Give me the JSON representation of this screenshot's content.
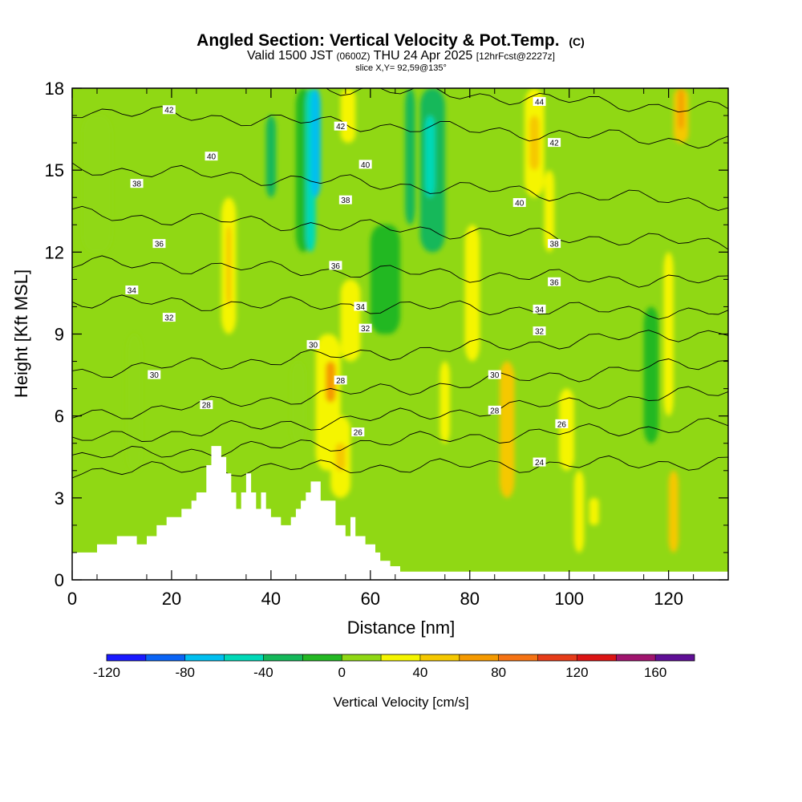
{
  "chart_data": {
    "type": "heatmap",
    "title": {
      "main": "Angled Section: Vertical Velocity & Pot.Temp.",
      "main_unit": "(C)",
      "valid_prefix": "Valid 1500 JST",
      "valid_utc": "(0600Z)",
      "valid_date": "THU 24 Apr 2025",
      "forecast": "[12hrFcst@2227z]",
      "slice": "slice X,Y= 92,59@135°"
    },
    "xlabel": "Distance [nm]",
    "ylabel": "Height [Kft MSL]",
    "xlim": [
      0,
      132
    ],
    "ylim": [
      0,
      18
    ],
    "x_ticks": [
      0,
      20,
      40,
      60,
      80,
      100,
      120
    ],
    "y_ticks": [
      0,
      3,
      6,
      9,
      12,
      15,
      18
    ],
    "colorbar": {
      "label": "Vertical Velocity [cm/s]",
      "min": -120,
      "max": 180,
      "step": 20,
      "tick_values": [
        -120,
        -80,
        -40,
        0,
        40,
        80,
        120,
        160
      ],
      "colors": [
        "#1a1aff",
        "#0a64f5",
        "#00bff0",
        "#00d9b8",
        "#14b85a",
        "#24b824",
        "#90d814",
        "#f5f500",
        "#f5c800",
        "#f59a00",
        "#f57314",
        "#e63c19",
        "#dc1414",
        "#a0146e",
        "#5f0f96"
      ]
    },
    "terrain_profile": {
      "distance_nm": [
        0,
        5,
        5,
        9,
        9,
        13,
        13,
        15,
        15,
        17,
        17,
        19,
        19,
        22,
        22,
        24,
        24,
        25,
        25,
        27,
        27,
        28,
        28,
        30,
        30,
        31,
        31,
        32,
        32,
        33,
        33,
        34,
        34,
        35,
        35,
        36,
        36,
        37,
        37,
        38,
        38,
        39,
        39,
        40,
        40,
        42,
        42,
        44,
        44,
        45,
        45,
        46,
        46,
        47,
        47,
        48,
        48,
        50,
        50,
        53,
        53,
        55,
        55,
        56,
        56,
        57,
        57,
        59,
        59,
        61,
        61,
        62,
        62,
        64,
        64,
        66,
        66,
        67,
        67,
        69,
        69,
        71,
        71,
        132
      ],
      "height_kft": [
        1,
        1,
        1.3,
        1.3,
        1.6,
        1.6,
        1.3,
        1.3,
        1.6,
        1.6,
        2,
        2,
        2.3,
        2.3,
        2.6,
        2.6,
        2.9,
        2.9,
        3.2,
        3.2,
        4.2,
        4.2,
        4.9,
        4.9,
        4.5,
        4.5,
        3.9,
        3.9,
        3.2,
        3.2,
        2.6,
        2.6,
        3.2,
        3.2,
        3.9,
        3.9,
        3.2,
        3.2,
        2.6,
        2.6,
        3.2,
        3.2,
        2.6,
        2.6,
        2.3,
        2.3,
        2,
        2,
        2.3,
        2.3,
        2.6,
        2.6,
        2.9,
        2.9,
        3.2,
        3.2,
        3.6,
        3.6,
        2.9,
        2.9,
        2,
        2,
        1.6,
        1.6,
        2.3,
        2.3,
        1.6,
        1.6,
        1.3,
        1.3,
        1,
        1,
        0.7,
        0.7,
        0.5,
        0.5,
        0.3,
        0.3,
        0.3,
        0.3,
        0.3,
        0.3,
        0.3,
        0.3
      ]
    },
    "vertical_velocity_columns": [
      {
        "x": [
          11,
          14
        ],
        "y": [
          4,
          9
        ],
        "value": 5
      },
      {
        "x": [
          30,
          33
        ],
        "y": [
          9,
          14
        ],
        "value": 35
      },
      {
        "x": [
          31,
          32
        ],
        "y": [
          10,
          13
        ],
        "value": 45
      },
      {
        "x": [
          44,
          47
        ],
        "y": [
          5,
          8
        ],
        "value": 5
      },
      {
        "x": [
          45,
          48
        ],
        "y": [
          12,
          18
        ],
        "value": -20
      },
      {
        "x": [
          47,
          49
        ],
        "y": [
          12,
          18
        ],
        "value": -45
      },
      {
        "x": [
          48,
          50
        ],
        "y": [
          14,
          18
        ],
        "value": -65
      },
      {
        "x": [
          39,
          41
        ],
        "y": [
          14,
          17
        ],
        "value": -30
      },
      {
        "x": [
          49,
          54
        ],
        "y": [
          4,
          9
        ],
        "value": 30
      },
      {
        "x": [
          51,
          53
        ],
        "y": [
          6.5,
          8
        ],
        "value": 65
      },
      {
        "x": [
          52,
          56
        ],
        "y": [
          3,
          6
        ],
        "value": 35
      },
      {
        "x": [
          53,
          55
        ],
        "y": [
          4,
          5
        ],
        "value": 55
      },
      {
        "x": [
          54,
          58
        ],
        "y": [
          8,
          11
        ],
        "value": 30
      },
      {
        "x": [
          54,
          57
        ],
        "y": [
          16,
          18
        ],
        "value": 25
      },
      {
        "x": [
          67,
          69
        ],
        "y": [
          13,
          18
        ],
        "value": -30
      },
      {
        "x": [
          70,
          75
        ],
        "y": [
          12,
          18
        ],
        "value": -35
      },
      {
        "x": [
          71,
          73
        ],
        "y": [
          14,
          17
        ],
        "value": -55
      },
      {
        "x": [
          74,
          76
        ],
        "y": [
          5,
          8
        ],
        "value": 30
      },
      {
        "x": [
          79,
          82
        ],
        "y": [
          8,
          13
        ],
        "value": 35
      },
      {
        "x": [
          86,
          89
        ],
        "y": [
          3,
          8
        ],
        "value": 40
      },
      {
        "x": [
          87,
          88
        ],
        "y": [
          3.5,
          5
        ],
        "value": 55
      },
      {
        "x": [
          91,
          95
        ],
        "y": [
          14,
          18
        ],
        "value": 35
      },
      {
        "x": [
          92,
          94
        ],
        "y": [
          15,
          17
        ],
        "value": 55
      },
      {
        "x": [
          95,
          97
        ],
        "y": [
          12,
          15
        ],
        "value": 30
      },
      {
        "x": [
          98,
          101
        ],
        "y": [
          4,
          7
        ],
        "value": 35
      },
      {
        "x": [
          101,
          103
        ],
        "y": [
          1,
          4
        ],
        "value": 35
      },
      {
        "x": [
          104,
          106
        ],
        "y": [
          2,
          3
        ],
        "value": 30
      },
      {
        "x": [
          119,
          121
        ],
        "y": [
          6,
          12
        ],
        "value": 30
      },
      {
        "x": [
          120,
          122
        ],
        "y": [
          1,
          4
        ],
        "value": 40
      },
      {
        "x": [
          121,
          124
        ],
        "y": [
          16,
          18
        ],
        "value": 40
      },
      {
        "x": [
          122,
          123
        ],
        "y": [
          16.5,
          18
        ],
        "value": 60
      },
      {
        "x": [
          115,
          118
        ],
        "y": [
          5,
          10
        ],
        "value": -10
      },
      {
        "x": [
          60,
          66
        ],
        "y": [
          9,
          13
        ],
        "value": -10
      },
      {
        "x": [
          2,
          8
        ],
        "y": [
          12,
          17
        ],
        "value": 15
      }
    ],
    "isentropes_C": [
      {
        "theta": 24,
        "y_left": 4.0,
        "y_right": 4.3,
        "label_x": 94
      },
      {
        "theta": 26,
        "y_left": 4.5,
        "y_right": 5.7,
        "label_x": 100
      },
      {
        "theta": 28,
        "y_left": 5.1,
        "y_right": 6.9,
        "label_x": 85
      },
      {
        "theta": 30,
        "y_left": 6.0,
        "y_right": 8.0,
        "label_x": 85
      },
      {
        "theta": 32,
        "y_left": 7.6,
        "y_right": 9.1,
        "label_x": 94
      },
      {
        "theta": 34,
        "y_left": 10.2,
        "y_right": 9.8,
        "label_x": 94
      },
      {
        "theta": 36,
        "y_left": 11.6,
        "y_right": 10.9,
        "label_x": 97
      },
      {
        "theta": 38,
        "y_left": 13.4,
        "y_right": 12.3,
        "label_x": 97
      },
      {
        "theta": 40,
        "y_left": 15.1,
        "y_right": 13.8,
        "label_x": 90
      },
      {
        "theta": 42,
        "y_left": 17.2,
        "y_right": 16.0,
        "label_x": 97
      },
      {
        "theta": 44,
        "y_left": 18.6,
        "y_right": 17.2,
        "label_x": 94
      }
    ],
    "contour_labels": [
      {
        "text": "42",
        "x": 19.5,
        "y": 17.2
      },
      {
        "text": "42",
        "x": 54.0,
        "y": 16.6
      },
      {
        "text": "44",
        "x": 94.0,
        "y": 17.5
      },
      {
        "text": "42",
        "x": 97.0,
        "y": 16.0
      },
      {
        "text": "40",
        "x": 28.0,
        "y": 15.5
      },
      {
        "text": "40",
        "x": 59.0,
        "y": 15.2
      },
      {
        "text": "40",
        "x": 90.0,
        "y": 13.8
      },
      {
        "text": "38",
        "x": 13.0,
        "y": 14.5
      },
      {
        "text": "38",
        "x": 55.0,
        "y": 13.9
      },
      {
        "text": "38",
        "x": 97.0,
        "y": 12.3
      },
      {
        "text": "36",
        "x": 17.5,
        "y": 12.3
      },
      {
        "text": "36",
        "x": 53.0,
        "y": 11.5
      },
      {
        "text": "36",
        "x": 97.0,
        "y": 10.9
      },
      {
        "text": "34",
        "x": 12.0,
        "y": 10.6
      },
      {
        "text": "34",
        "x": 58.0,
        "y": 10.0
      },
      {
        "text": "34",
        "x": 94.0,
        "y": 9.9
      },
      {
        "text": "32",
        "x": 19.5,
        "y": 9.6
      },
      {
        "text": "32",
        "x": 59.0,
        "y": 9.2
      },
      {
        "text": "32",
        "x": 94.0,
        "y": 9.1
      },
      {
        "text": "30",
        "x": 16.5,
        "y": 7.5
      },
      {
        "text": "30",
        "x": 48.5,
        "y": 8.6
      },
      {
        "text": "30",
        "x": 85.0,
        "y": 7.5
      },
      {
        "text": "28",
        "x": 27.0,
        "y": 6.4
      },
      {
        "text": "28",
        "x": 54.0,
        "y": 7.3
      },
      {
        "text": "28",
        "x": 85.0,
        "y": 6.2
      },
      {
        "text": "26",
        "x": 57.5,
        "y": 5.4
      },
      {
        "text": "26",
        "x": 98.5,
        "y": 5.7
      },
      {
        "text": "24",
        "x": 94.0,
        "y": 4.3
      }
    ]
  }
}
